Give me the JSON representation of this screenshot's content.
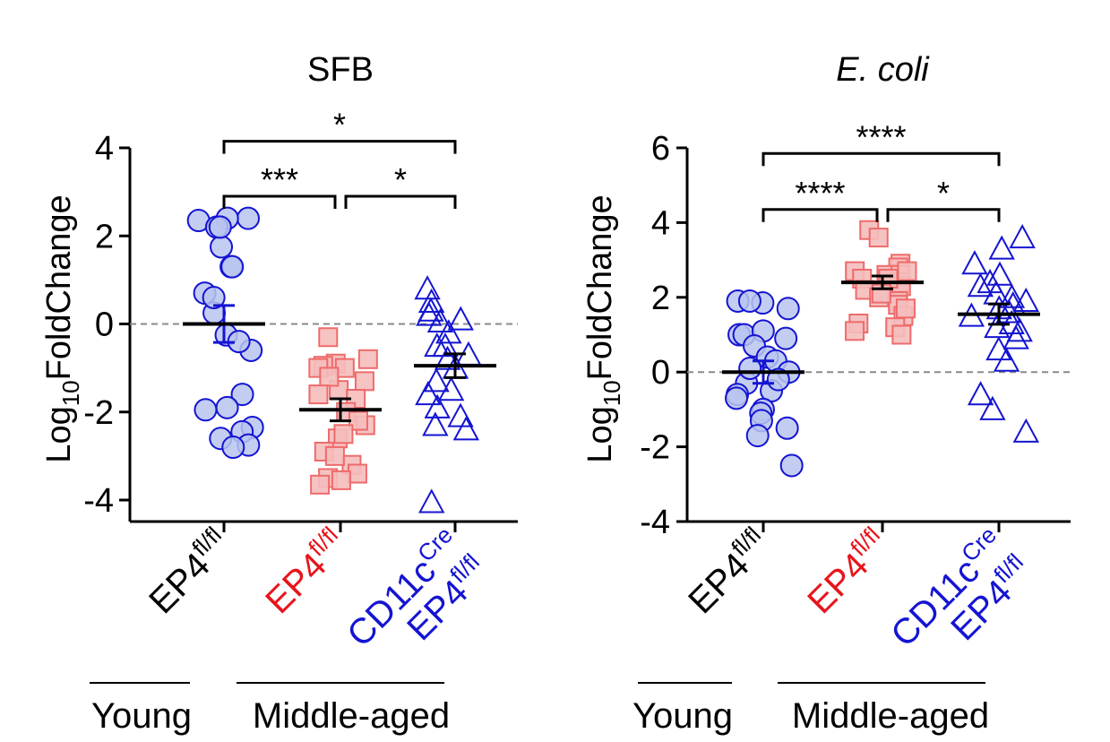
{
  "colors": {
    "black": "#000000",
    "red": "#e8141c",
    "blue": "#1414d2",
    "blue_fill": "#b8c4ee",
    "red_fill": "#f5bcbc",
    "red_edge": "#ee6b6b",
    "zero_line": "#8a8a8a"
  },
  "groups": {
    "young_label": "Young",
    "middle_label": "Middle-aged"
  },
  "chart_data": [
    {
      "type": "scatter",
      "title": "SFB",
      "title_italic": false,
      "ylabel_main": "Log",
      "ylabel_sub": "10",
      "ylabel_rest": "FoldChange",
      "ylim": [
        -4.5,
        4
      ],
      "yticks": [
        4,
        2,
        0,
        -2,
        -4
      ],
      "ytick_labels": [
        "4",
        "2",
        "0",
        "-2",
        "-4"
      ],
      "reference_line": 0,
      "categories": [
        {
          "main": "EP4",
          "sup": "fl/fl",
          "color": "black"
        },
        {
          "main": "EP4",
          "sup": "fl/fl",
          "color": "red"
        },
        {
          "main": "CD11c",
          "sup": "Cre",
          "main2": "EP4",
          "sup2": "fl/fl",
          "color": "blue"
        }
      ],
      "series": [
        {
          "name": "Young EP4fl/fl",
          "marker": "circle",
          "mean": 0.0,
          "sem": 0.42,
          "values": [
            2.4,
            2.35,
            2.4,
            2.2,
            1.75,
            1.3,
            0.7,
            0.25,
            -0.25,
            -0.6,
            -1.6,
            -1.95,
            -2.35,
            -2.45,
            -2.6,
            -2.75,
            2.2,
            1.3,
            0.6,
            -0.4,
            -1.9,
            -2.8
          ]
        },
        {
          "name": "Middle-aged EP4fl/fl",
          "marker": "square",
          "mean": -1.95,
          "sem": 0.25,
          "values": [
            -0.3,
            -0.9,
            -0.95,
            -1.0,
            -0.8,
            -1.3,
            -1.5,
            -1.7,
            -2.0,
            -2.3,
            -2.6,
            -2.9,
            -3.2,
            -3.4,
            -3.5,
            -3.55,
            -3.65,
            -1.0,
            -1.2,
            -1.6,
            -2.2,
            -2.5,
            -3.0
          ]
        },
        {
          "name": "Middle-aged CD11cCre EP4fl/fl",
          "marker": "triangle",
          "mean": -0.95,
          "sem": 0.27,
          "values": [
            0.8,
            0.5,
            0.3,
            0.1,
            0.05,
            -0.2,
            -0.5,
            -0.8,
            -1.0,
            -1.3,
            -1.6,
            -1.9,
            -2.1,
            -2.3,
            -2.4,
            -0.5,
            0.2,
            -0.7,
            -1.5,
            -4.05
          ]
        }
      ],
      "significance": [
        {
          "from": 0,
          "to": 2,
          "label": "*",
          "y": 4.15
        },
        {
          "from": 0,
          "to": 1,
          "label": "***",
          "y": 2.9
        },
        {
          "from": 1,
          "to": 2,
          "label": "*",
          "y": 2.9
        }
      ]
    },
    {
      "type": "scatter",
      "title": "E. coli",
      "title_italic": true,
      "ylabel_main": "Log",
      "ylabel_sub": "10",
      "ylabel_rest": "FoldChange",
      "ylim": [
        -4,
        6
      ],
      "yticks": [
        6,
        4,
        2,
        0,
        -2,
        -4
      ],
      "ytick_labels": [
        "6",
        "4",
        "2",
        "0",
        "-2",
        "-4"
      ],
      "reference_line": 0,
      "categories": [
        {
          "main": "EP4",
          "sup": "fl/fl",
          "color": "black"
        },
        {
          "main": "EP4",
          "sup": "fl/fl",
          "color": "red"
        },
        {
          "main": "CD11c",
          "sup": "Cre",
          "main2": "EP4",
          "sup2": "fl/fl",
          "color": "blue"
        }
      ],
      "series": [
        {
          "name": "Young EP4fl/fl",
          "marker": "circle",
          "mean": 0.0,
          "sem": 0.3,
          "values": [
            1.9,
            1.85,
            1.9,
            1.7,
            1.0,
            1.0,
            1.1,
            0.9,
            0.7,
            0.4,
            0.3,
            0.0,
            -0.3,
            -0.5,
            -0.6,
            -0.7,
            -1.0,
            -1.1,
            -1.3,
            -1.5,
            -1.7,
            -2.5,
            0.1,
            -0.2
          ]
        },
        {
          "name": "Middle-aged EP4fl/fl",
          "marker": "square",
          "mean": 2.4,
          "sem": 0.17,
          "values": [
            3.8,
            3.6,
            2.9,
            2.8,
            2.7,
            2.6,
            2.6,
            2.5,
            2.4,
            2.3,
            2.2,
            2.0,
            1.9,
            1.8,
            1.5,
            1.3,
            1.2,
            1.0,
            2.7,
            2.5,
            2.1,
            1.7,
            1.1
          ]
        },
        {
          "name": "Middle-aged CD11cCre EP4fl/fl",
          "marker": "triangle",
          "mean": 1.55,
          "sem": 0.27,
          "values": [
            3.6,
            3.3,
            2.9,
            2.6,
            2.3,
            2.1,
            2.0,
            1.8,
            1.7,
            1.6,
            1.5,
            1.3,
            1.1,
            0.9,
            0.6,
            0.3,
            -0.6,
            -1.0,
            -1.6,
            2.4,
            1.9,
            1.2
          ]
        }
      ],
      "significance": [
        {
          "from": 0,
          "to": 2,
          "label": "****",
          "y": 5.85
        },
        {
          "from": 0,
          "to": 1,
          "label": "****",
          "y": 4.35
        },
        {
          "from": 1,
          "to": 2,
          "label": "*",
          "y": 4.35
        }
      ]
    }
  ]
}
